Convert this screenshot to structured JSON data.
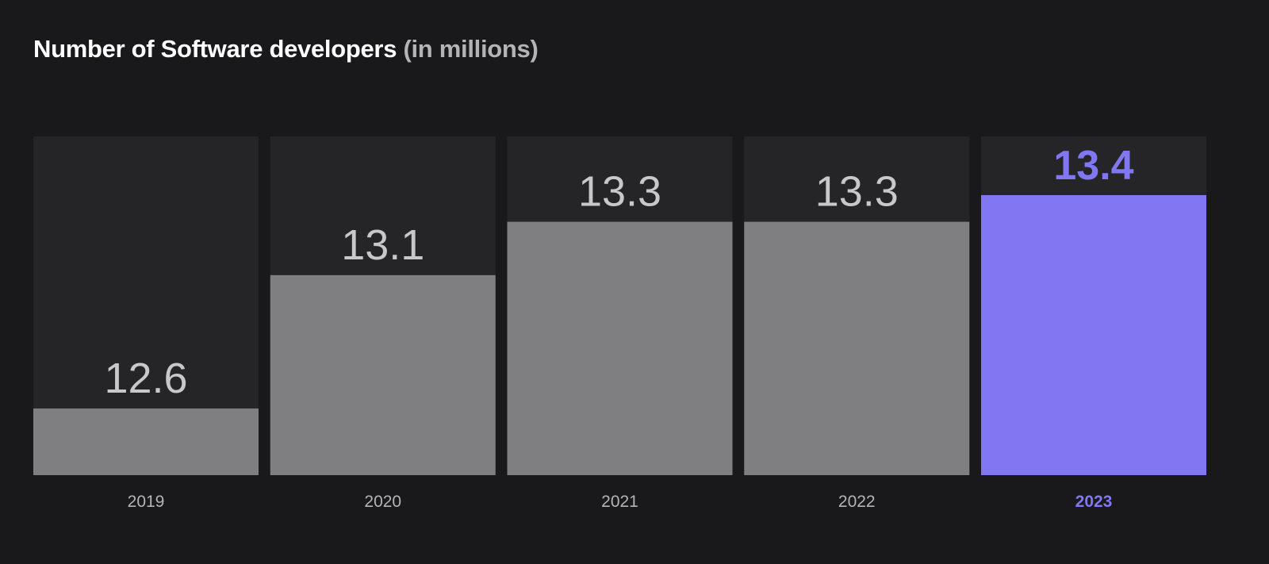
{
  "chart_data": {
    "type": "bar",
    "title": "Number of Software developers",
    "subtitle": "(in millions)",
    "categories": [
      "2019",
      "2020",
      "2021",
      "2022",
      "2023"
    ],
    "values": [
      12.6,
      13.1,
      13.3,
      13.3,
      13.4
    ],
    "value_labels": [
      "12.6",
      "13.1",
      "13.3",
      "13.3",
      "13.4"
    ],
    "highlight_index": 4,
    "xlabel": "",
    "ylabel": "",
    "ylim": [
      12.35,
      13.62
    ],
    "grid": false,
    "colors": {
      "background": "#19191b",
      "track": "#252527",
      "bar": "#7f7f81",
      "highlight": "#8277f3",
      "label": "#c8c8ca"
    }
  }
}
